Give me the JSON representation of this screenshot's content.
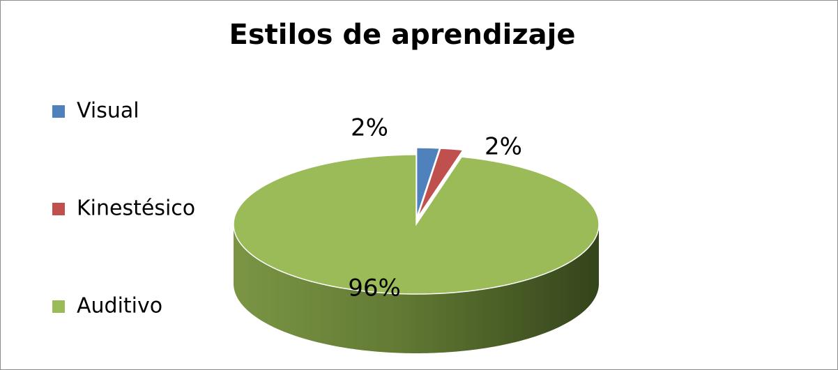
{
  "chart_data": {
    "type": "pie",
    "title": "Estilos  de  aprendizaje",
    "categories": [
      "Visual",
      "Kinestésico",
      "Auditivo"
    ],
    "values": [
      2,
      2,
      96
    ],
    "value_labels": [
      "2%",
      "2%",
      "96%"
    ],
    "colors": [
      "#4f81bd",
      "#c0504d",
      "#9bbb59"
    ],
    "legend": "left"
  }
}
